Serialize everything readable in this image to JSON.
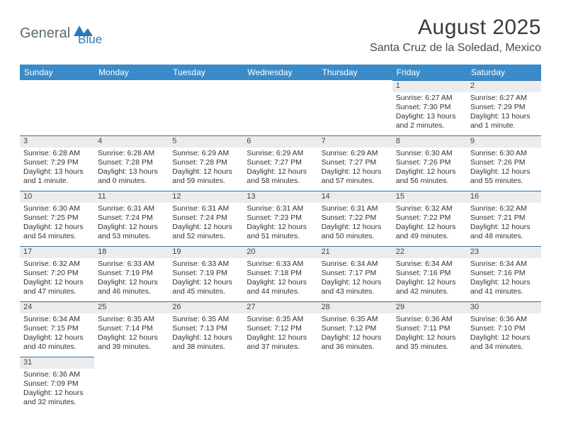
{
  "logo": {
    "part1": "General",
    "part2": "Blue"
  },
  "title": "August 2025",
  "location": "Santa Cruz de la Soledad, Mexico",
  "colors": {
    "header_bg": "#3a8bc9",
    "row_divider": "#2e72ad",
    "daynum_bg": "#ececec",
    "text": "#333333",
    "logo_gray": "#5a6a72",
    "logo_blue": "#2a7ab8",
    "page_bg": "#ffffff"
  },
  "day_labels": [
    "Sunday",
    "Monday",
    "Tuesday",
    "Wednesday",
    "Thursday",
    "Friday",
    "Saturday"
  ],
  "weeks": [
    [
      {
        "n": "",
        "sr": "",
        "ss": "",
        "dl": ""
      },
      {
        "n": "",
        "sr": "",
        "ss": "",
        "dl": ""
      },
      {
        "n": "",
        "sr": "",
        "ss": "",
        "dl": ""
      },
      {
        "n": "",
        "sr": "",
        "ss": "",
        "dl": ""
      },
      {
        "n": "",
        "sr": "",
        "ss": "",
        "dl": ""
      },
      {
        "n": "1",
        "sr": "Sunrise: 6:27 AM",
        "ss": "Sunset: 7:30 PM",
        "dl": "Daylight: 13 hours and 2 minutes."
      },
      {
        "n": "2",
        "sr": "Sunrise: 6:27 AM",
        "ss": "Sunset: 7:29 PM",
        "dl": "Daylight: 13 hours and 1 minute."
      }
    ],
    [
      {
        "n": "3",
        "sr": "Sunrise: 6:28 AM",
        "ss": "Sunset: 7:29 PM",
        "dl": "Daylight: 13 hours and 1 minute."
      },
      {
        "n": "4",
        "sr": "Sunrise: 6:28 AM",
        "ss": "Sunset: 7:28 PM",
        "dl": "Daylight: 13 hours and 0 minutes."
      },
      {
        "n": "5",
        "sr": "Sunrise: 6:29 AM",
        "ss": "Sunset: 7:28 PM",
        "dl": "Daylight: 12 hours and 59 minutes."
      },
      {
        "n": "6",
        "sr": "Sunrise: 6:29 AM",
        "ss": "Sunset: 7:27 PM",
        "dl": "Daylight: 12 hours and 58 minutes."
      },
      {
        "n": "7",
        "sr": "Sunrise: 6:29 AM",
        "ss": "Sunset: 7:27 PM",
        "dl": "Daylight: 12 hours and 57 minutes."
      },
      {
        "n": "8",
        "sr": "Sunrise: 6:30 AM",
        "ss": "Sunset: 7:26 PM",
        "dl": "Daylight: 12 hours and 56 minutes."
      },
      {
        "n": "9",
        "sr": "Sunrise: 6:30 AM",
        "ss": "Sunset: 7:26 PM",
        "dl": "Daylight: 12 hours and 55 minutes."
      }
    ],
    [
      {
        "n": "10",
        "sr": "Sunrise: 6:30 AM",
        "ss": "Sunset: 7:25 PM",
        "dl": "Daylight: 12 hours and 54 minutes."
      },
      {
        "n": "11",
        "sr": "Sunrise: 6:31 AM",
        "ss": "Sunset: 7:24 PM",
        "dl": "Daylight: 12 hours and 53 minutes."
      },
      {
        "n": "12",
        "sr": "Sunrise: 6:31 AM",
        "ss": "Sunset: 7:24 PM",
        "dl": "Daylight: 12 hours and 52 minutes."
      },
      {
        "n": "13",
        "sr": "Sunrise: 6:31 AM",
        "ss": "Sunset: 7:23 PM",
        "dl": "Daylight: 12 hours and 51 minutes."
      },
      {
        "n": "14",
        "sr": "Sunrise: 6:31 AM",
        "ss": "Sunset: 7:22 PM",
        "dl": "Daylight: 12 hours and 50 minutes."
      },
      {
        "n": "15",
        "sr": "Sunrise: 6:32 AM",
        "ss": "Sunset: 7:22 PM",
        "dl": "Daylight: 12 hours and 49 minutes."
      },
      {
        "n": "16",
        "sr": "Sunrise: 6:32 AM",
        "ss": "Sunset: 7:21 PM",
        "dl": "Daylight: 12 hours and 48 minutes."
      }
    ],
    [
      {
        "n": "17",
        "sr": "Sunrise: 6:32 AM",
        "ss": "Sunset: 7:20 PM",
        "dl": "Daylight: 12 hours and 47 minutes."
      },
      {
        "n": "18",
        "sr": "Sunrise: 6:33 AM",
        "ss": "Sunset: 7:19 PM",
        "dl": "Daylight: 12 hours and 46 minutes."
      },
      {
        "n": "19",
        "sr": "Sunrise: 6:33 AM",
        "ss": "Sunset: 7:19 PM",
        "dl": "Daylight: 12 hours and 45 minutes."
      },
      {
        "n": "20",
        "sr": "Sunrise: 6:33 AM",
        "ss": "Sunset: 7:18 PM",
        "dl": "Daylight: 12 hours and 44 minutes."
      },
      {
        "n": "21",
        "sr": "Sunrise: 6:34 AM",
        "ss": "Sunset: 7:17 PM",
        "dl": "Daylight: 12 hours and 43 minutes."
      },
      {
        "n": "22",
        "sr": "Sunrise: 6:34 AM",
        "ss": "Sunset: 7:16 PM",
        "dl": "Daylight: 12 hours and 42 minutes."
      },
      {
        "n": "23",
        "sr": "Sunrise: 6:34 AM",
        "ss": "Sunset: 7:16 PM",
        "dl": "Daylight: 12 hours and 41 minutes."
      }
    ],
    [
      {
        "n": "24",
        "sr": "Sunrise: 6:34 AM",
        "ss": "Sunset: 7:15 PM",
        "dl": "Daylight: 12 hours and 40 minutes."
      },
      {
        "n": "25",
        "sr": "Sunrise: 6:35 AM",
        "ss": "Sunset: 7:14 PM",
        "dl": "Daylight: 12 hours and 39 minutes."
      },
      {
        "n": "26",
        "sr": "Sunrise: 6:35 AM",
        "ss": "Sunset: 7:13 PM",
        "dl": "Daylight: 12 hours and 38 minutes."
      },
      {
        "n": "27",
        "sr": "Sunrise: 6:35 AM",
        "ss": "Sunset: 7:12 PM",
        "dl": "Daylight: 12 hours and 37 minutes."
      },
      {
        "n": "28",
        "sr": "Sunrise: 6:35 AM",
        "ss": "Sunset: 7:12 PM",
        "dl": "Daylight: 12 hours and 36 minutes."
      },
      {
        "n": "29",
        "sr": "Sunrise: 6:36 AM",
        "ss": "Sunset: 7:11 PM",
        "dl": "Daylight: 12 hours and 35 minutes."
      },
      {
        "n": "30",
        "sr": "Sunrise: 6:36 AM",
        "ss": "Sunset: 7:10 PM",
        "dl": "Daylight: 12 hours and 34 minutes."
      }
    ],
    [
      {
        "n": "31",
        "sr": "Sunrise: 6:36 AM",
        "ss": "Sunset: 7:09 PM",
        "dl": "Daylight: 12 hours and 32 minutes."
      },
      {
        "n": "",
        "sr": "",
        "ss": "",
        "dl": ""
      },
      {
        "n": "",
        "sr": "",
        "ss": "",
        "dl": ""
      },
      {
        "n": "",
        "sr": "",
        "ss": "",
        "dl": ""
      },
      {
        "n": "",
        "sr": "",
        "ss": "",
        "dl": ""
      },
      {
        "n": "",
        "sr": "",
        "ss": "",
        "dl": ""
      },
      {
        "n": "",
        "sr": "",
        "ss": "",
        "dl": ""
      }
    ]
  ]
}
